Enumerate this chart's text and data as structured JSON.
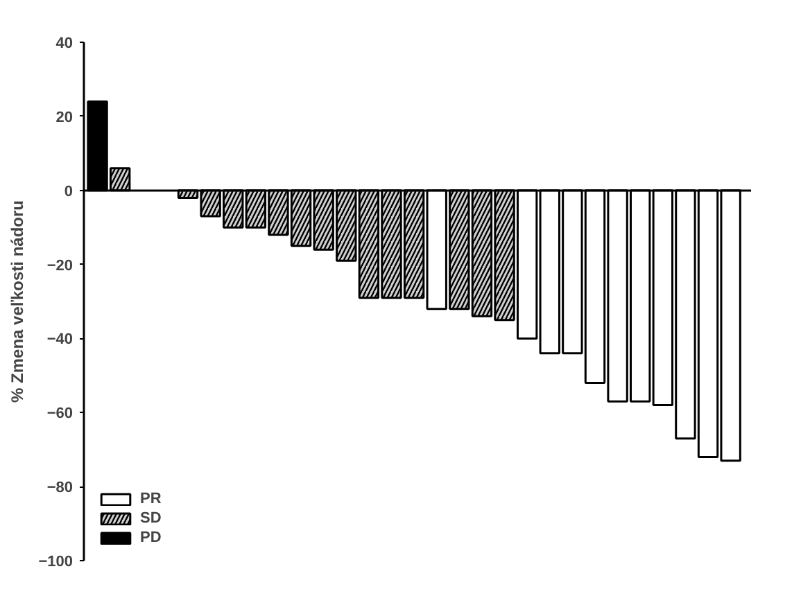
{
  "chart_data": {
    "type": "bar",
    "ylabel": "% Zmena veľkosti nádoru",
    "categories": [
      null,
      null,
      null,
      null,
      null,
      null,
      null,
      null,
      null,
      null,
      null,
      null,
      null,
      null,
      null,
      null,
      null,
      null,
      null,
      null,
      null,
      null,
      null,
      null,
      null,
      null,
      null,
      null,
      null
    ],
    "series": [
      {
        "name": "PR",
        "color": "#ffffff",
        "values": [
          null,
          null,
          null,
          null,
          null,
          null,
          null,
          null,
          null,
          null,
          null,
          null,
          null,
          null,
          null,
          -32,
          null,
          null,
          null,
          -40,
          -44,
          -44,
          -52,
          -57,
          -57,
          -58,
          -67,
          -72,
          -73
        ]
      },
      {
        "name": "SD",
        "color": "#d0d0d0",
        "values": [
          null,
          6,
          null,
          null,
          -2,
          -7,
          -10,
          -10,
          -12,
          -15,
          -16,
          -19,
          -29,
          -29,
          -29,
          null,
          -32,
          -34,
          -35,
          null,
          null,
          null,
          null,
          null,
          null,
          null,
          null,
          null,
          null
        ]
      },
      {
        "name": "PD",
        "color": "#000000",
        "values": [
          24,
          null,
          null,
          null,
          null,
          null,
          null,
          null,
          null,
          null,
          null,
          null,
          null,
          null,
          null,
          null,
          null,
          null,
          null,
          null,
          null,
          null,
          null,
          null,
          null,
          null,
          null,
          null,
          null
        ]
      }
    ],
    "ylim": [
      -100,
      40
    ],
    "yticks": [
      -100,
      -80,
      -60,
      -40,
      -20,
      0,
      20,
      40
    ],
    "legend": "bottom left",
    "tick_labels": "y"
  }
}
